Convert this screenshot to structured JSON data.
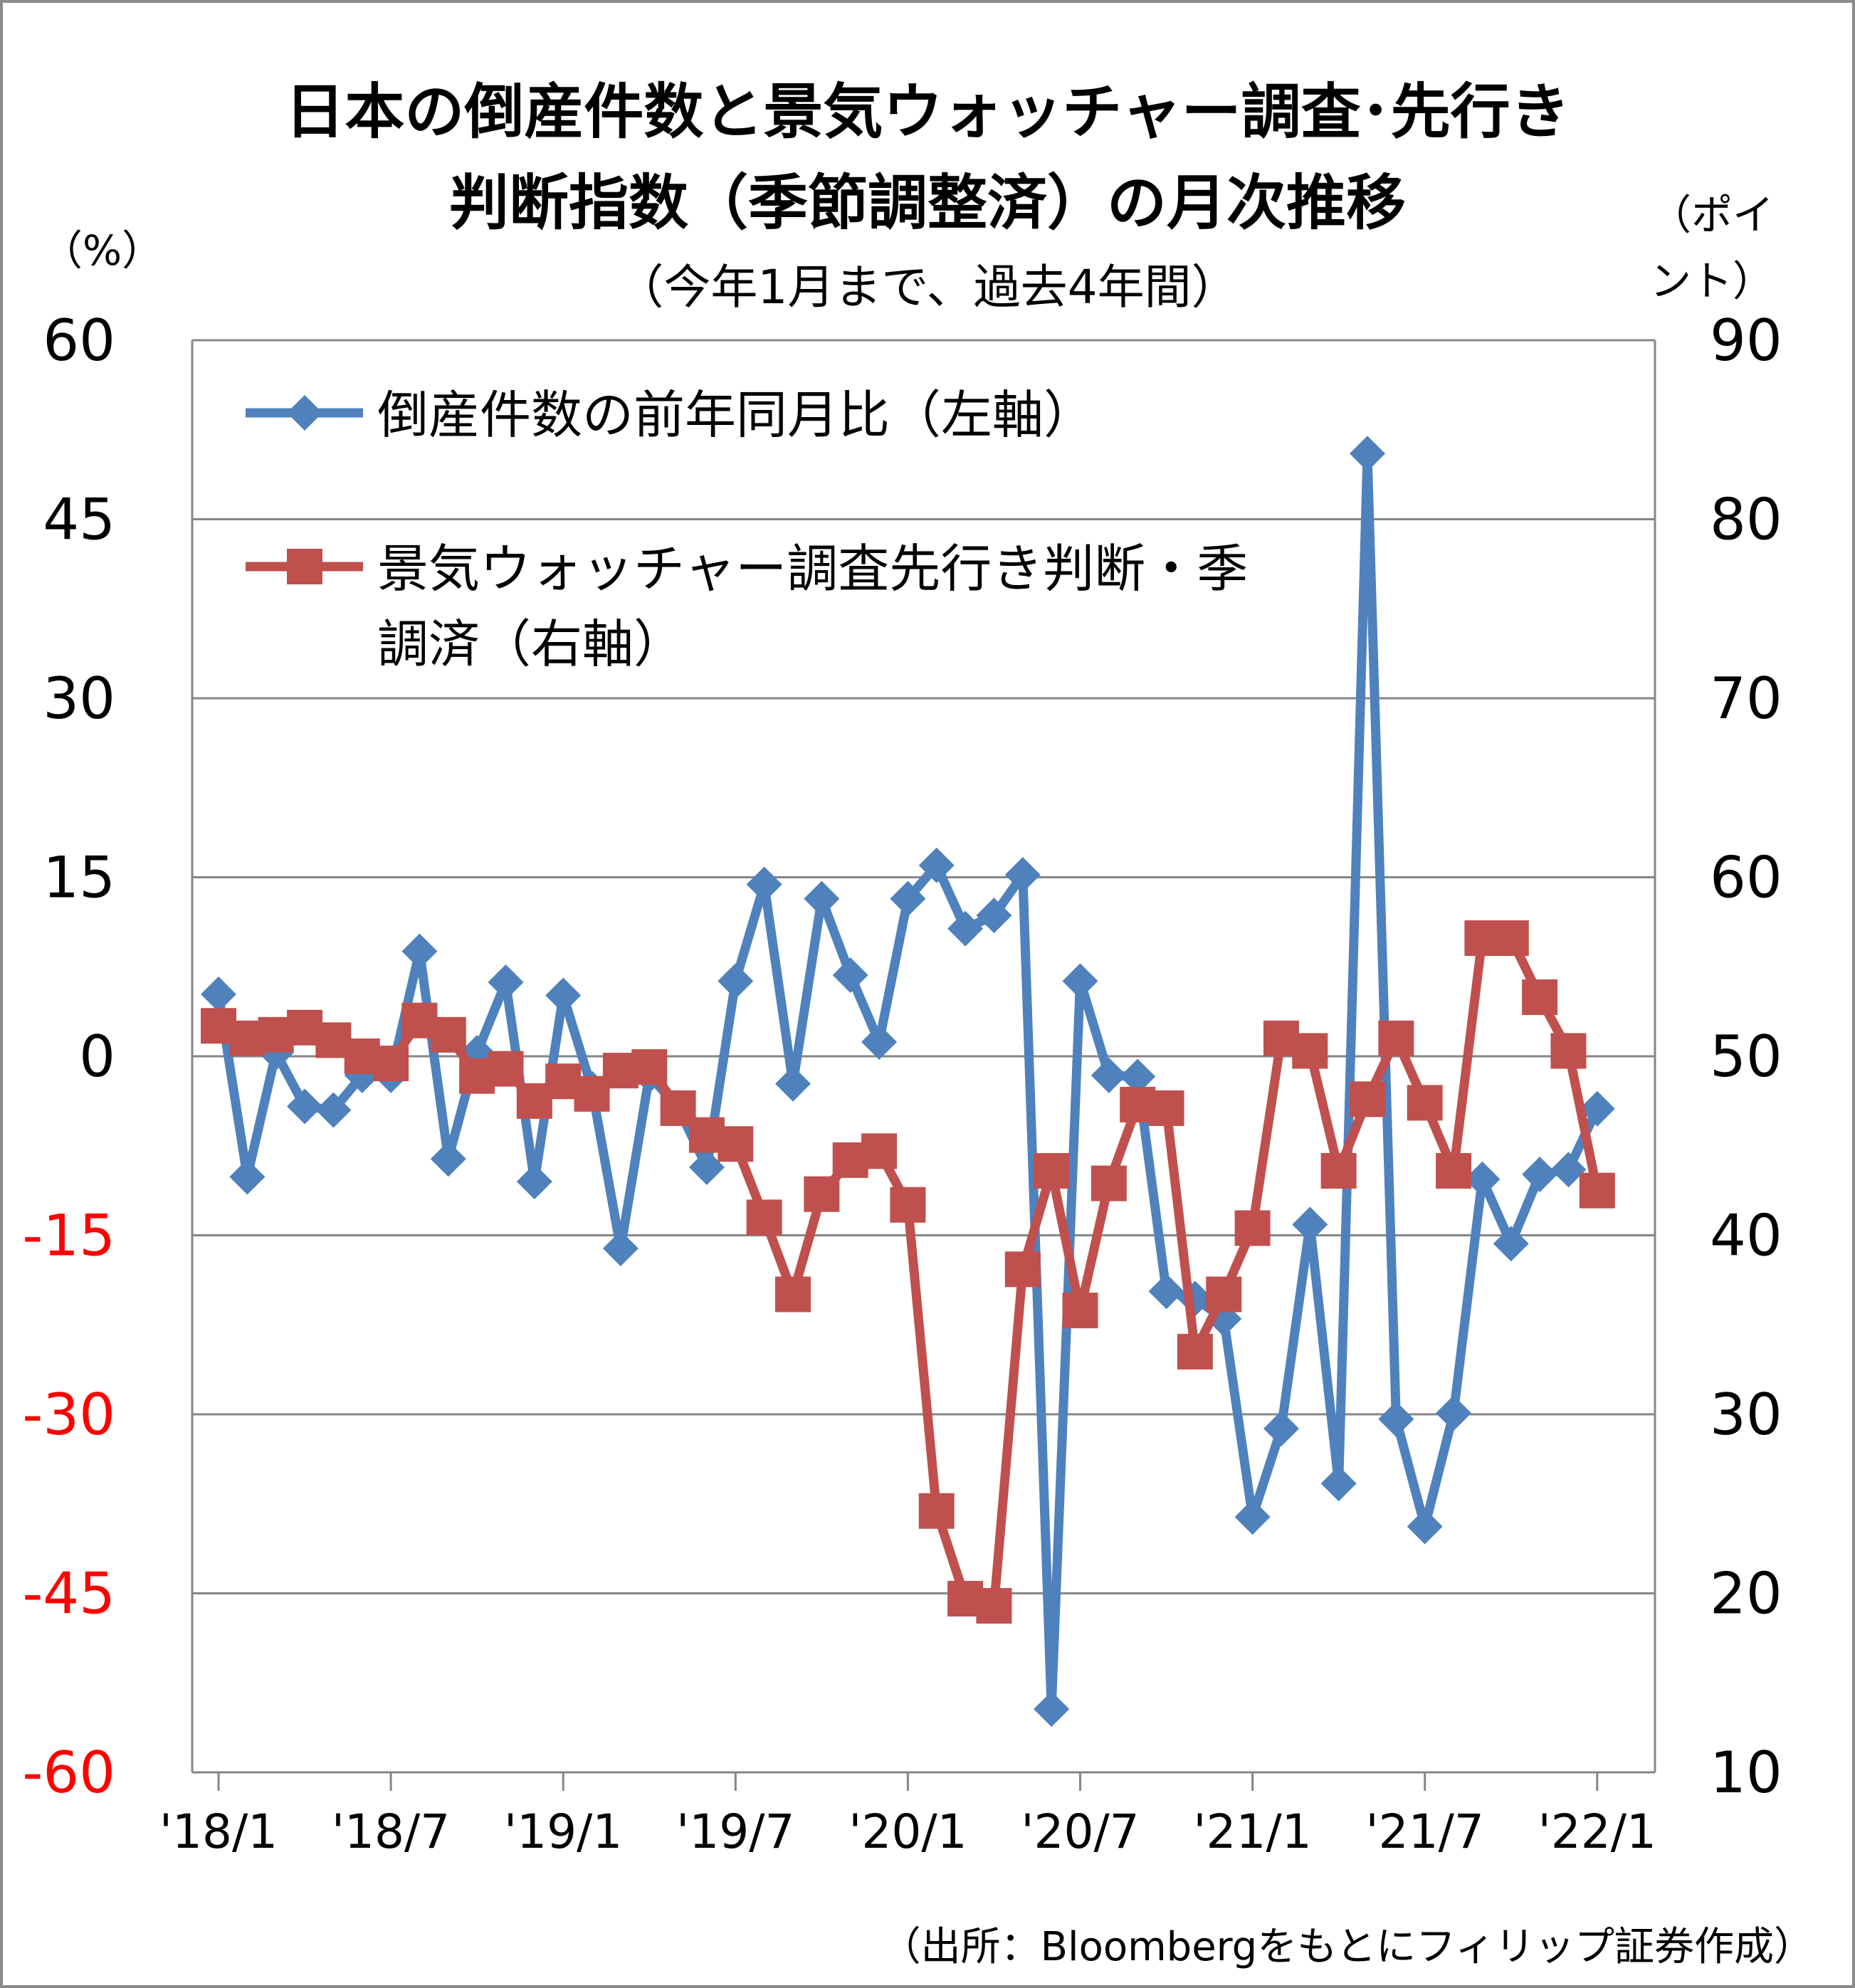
{
  "title_line1": "日本の倒産件数と景気ウォッチャー調査･先行き",
  "title_line2": "判断指数（季節調整済）の月次推移",
  "subtitle": "（今年1月まで、過去4年間）",
  "left_unit": "（%）",
  "right_unit_1": "（ポイ",
  "right_unit_2": "ント）",
  "source": "（出所：Bloombergをもとにフィリップ証券作成）",
  "colors": {
    "series1": "#4F81BD",
    "series2": "#C0504D",
    "negative_tick": "#FF0000",
    "grid": "#868686"
  },
  "chart_data": {
    "type": "line",
    "x": [
      "'18/1",
      "'18/2",
      "'18/3",
      "'18/4",
      "'18/5",
      "'18/6",
      "'18/7",
      "'18/8",
      "'18/9",
      "'18/10",
      "'18/11",
      "'18/12",
      "'19/1",
      "'19/2",
      "'19/3",
      "'19/4",
      "'19/5",
      "'19/6",
      "'19/7",
      "'19/8",
      "'19/9",
      "'19/10",
      "'19/11",
      "'19/12",
      "'20/1",
      "'20/2",
      "'20/3",
      "'20/4",
      "'20/5",
      "'20/6",
      "'20/7",
      "'20/8",
      "'20/9",
      "'20/10",
      "'20/11",
      "'20/12",
      "'21/1",
      "'21/2",
      "'21/3",
      "'21/4",
      "'21/5",
      "'21/6",
      "'21/7",
      "'21/8",
      "'21/9",
      "'21/10",
      "'21/11",
      "'21/12",
      "'22/1"
    ],
    "x_tick_labels": [
      "'18/1",
      "'18/7",
      "'19/1",
      "'19/7",
      "'20/1",
      "'20/7",
      "'21/1",
      "'21/7",
      "'22/1"
    ],
    "y_left": {
      "ticks": [
        "60",
        "45",
        "30",
        "15",
        "0",
        "-15",
        "-30",
        "-45",
        "-60"
      ],
      "range": [
        -60,
        60
      ],
      "unit": "%"
    },
    "y_right": {
      "ticks": [
        "90",
        "80",
        "70",
        "60",
        "50",
        "40",
        "30",
        "20",
        "10"
      ],
      "range": [
        10,
        90
      ],
      "unit": "ポイント"
    },
    "grid": true,
    "legend_position": "top-left",
    "series": [
      {
        "name": "倒産件数の前年同月比（左軸）",
        "axis": "left",
        "marker": "diamond",
        "color": "#4F81BD",
        "values": [
          5.2,
          -10.1,
          0.3,
          -4.2,
          -4.5,
          -1.6,
          -1.6,
          8.8,
          -8.6,
          0.3,
          6.2,
          -10.5,
          5.1,
          -2.7,
          -16.1,
          -1.6,
          -4.3,
          -9.3,
          6.3,
          14.4,
          -2.3,
          13.2,
          6.8,
          1.2,
          13.2,
          16.0,
          10.7,
          11.8,
          15.2,
          -54.7,
          6.3,
          -1.6,
          -1.7,
          -19.7,
          -20.3,
          -22.0,
          -38.6,
          -31.2,
          -14.1,
          -35.8,
          50.5,
          -30.4,
          -39.4,
          -29.9,
          -10.3,
          -15.7,
          -9.9,
          -9.5,
          -4.4
        ]
      },
      {
        "name": "景気ウォッチャー調査先行き判断・季調済（右軸）",
        "axis": "right",
        "marker": "square",
        "color": "#C0504D",
        "values": [
          51.7,
          51.0,
          51.2,
          51.6,
          50.9,
          50.0,
          49.6,
          52.0,
          51.2,
          48.9,
          49.3,
          47.5,
          48.6,
          47.9,
          49.2,
          49.4,
          47.1,
          45.6,
          45.1,
          41.0,
          36.7,
          42.3,
          44.2,
          44.7,
          41.7,
          24.6,
          19.7,
          19.3,
          38.1,
          43.6,
          35.8,
          42.9,
          47.3,
          47.1,
          33.5,
          36.7,
          40.4,
          51.0,
          50.3,
          43.6,
          47.6,
          51.0,
          47.4,
          43.6,
          56.6,
          56.6,
          53.3,
          50.3,
          42.5
        ]
      }
    ]
  }
}
